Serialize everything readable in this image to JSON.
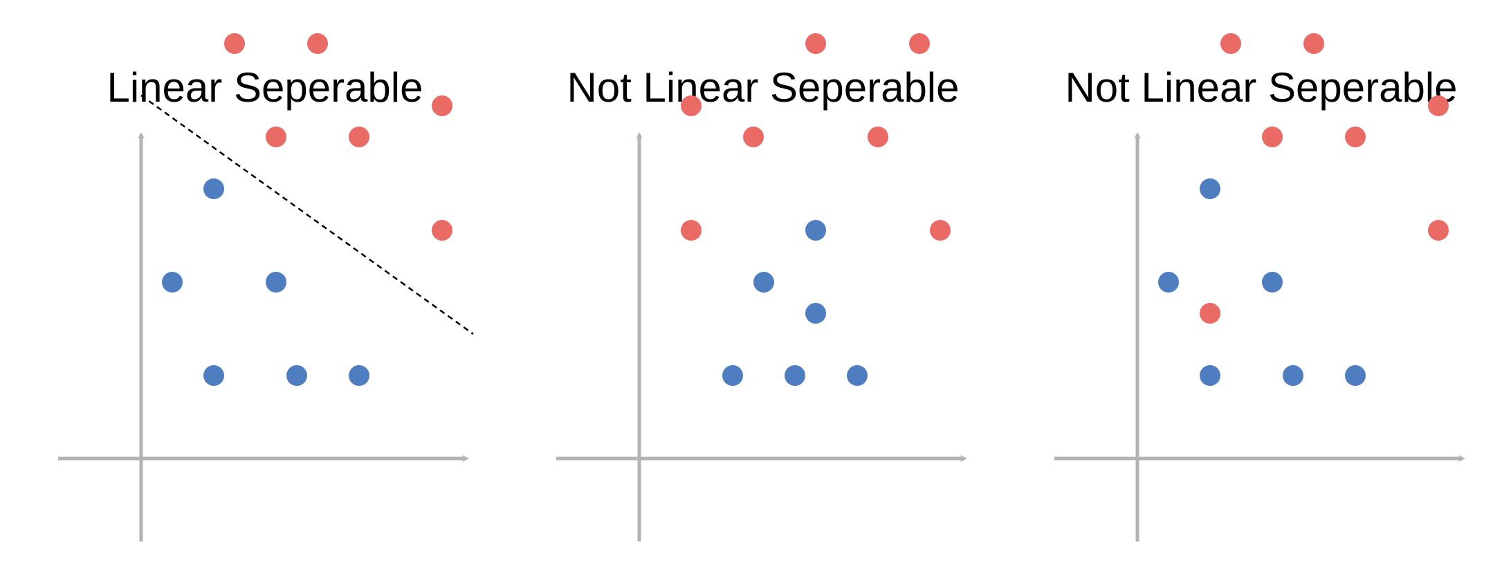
{
  "colors": {
    "axis": "#b3b3b3",
    "red_class": "#ea6b66",
    "blue_class": "#4e7dc0",
    "boundary": "#000000",
    "background": "#ffffff"
  },
  "panels": [
    {
      "title": "Linear Seperable",
      "has_boundary": true,
      "boundary": [
        [
          0.0,
          3.5
        ],
        [
          3.2,
          1.2
        ]
      ],
      "points": [
        {
          "x": 0.9,
          "y": 4.0,
          "class": "red"
        },
        {
          "x": 1.7,
          "y": 4.0,
          "class": "red"
        },
        {
          "x": 1.3,
          "y": 3.1,
          "class": "red"
        },
        {
          "x": 2.1,
          "y": 3.1,
          "class": "red"
        },
        {
          "x": 2.9,
          "y": 3.4,
          "class": "red"
        },
        {
          "x": 2.9,
          "y": 2.2,
          "class": "red"
        },
        {
          "x": 0.7,
          "y": 2.6,
          "class": "blue"
        },
        {
          "x": 0.3,
          "y": 1.7,
          "class": "blue"
        },
        {
          "x": 1.3,
          "y": 1.7,
          "class": "blue"
        },
        {
          "x": 0.7,
          "y": 0.8,
          "class": "blue"
        },
        {
          "x": 1.5,
          "y": 0.8,
          "class": "blue"
        },
        {
          "x": 2.1,
          "y": 0.8,
          "class": "blue"
        }
      ]
    },
    {
      "title": "Not Linear Seperable",
      "has_boundary": false,
      "points": [
        {
          "x": 1.7,
          "y": 4.0,
          "class": "red"
        },
        {
          "x": 2.7,
          "y": 4.0,
          "class": "red"
        },
        {
          "x": 0.5,
          "y": 3.4,
          "class": "red"
        },
        {
          "x": 1.1,
          "y": 3.1,
          "class": "red"
        },
        {
          "x": 2.3,
          "y": 3.1,
          "class": "red"
        },
        {
          "x": 0.5,
          "y": 2.2,
          "class": "red"
        },
        {
          "x": 2.9,
          "y": 2.2,
          "class": "red"
        },
        {
          "x": 1.7,
          "y": 2.2,
          "class": "blue"
        },
        {
          "x": 1.2,
          "y": 1.7,
          "class": "blue"
        },
        {
          "x": 1.7,
          "y": 1.4,
          "class": "blue"
        },
        {
          "x": 0.9,
          "y": 0.8,
          "class": "blue"
        },
        {
          "x": 1.5,
          "y": 0.8,
          "class": "blue"
        },
        {
          "x": 2.1,
          "y": 0.8,
          "class": "blue"
        }
      ]
    },
    {
      "title": "Not Linear Seperable",
      "has_boundary": false,
      "points": [
        {
          "x": 0.9,
          "y": 4.0,
          "class": "red"
        },
        {
          "x": 1.7,
          "y": 4.0,
          "class": "red"
        },
        {
          "x": 1.3,
          "y": 3.1,
          "class": "red"
        },
        {
          "x": 2.1,
          "y": 3.1,
          "class": "red"
        },
        {
          "x": 2.9,
          "y": 3.4,
          "class": "red"
        },
        {
          "x": 2.9,
          "y": 2.2,
          "class": "red"
        },
        {
          "x": 0.7,
          "y": 1.4,
          "class": "red"
        },
        {
          "x": 0.7,
          "y": 2.6,
          "class": "blue"
        },
        {
          "x": 0.3,
          "y": 1.7,
          "class": "blue"
        },
        {
          "x": 1.3,
          "y": 1.7,
          "class": "blue"
        },
        {
          "x": 0.7,
          "y": 0.8,
          "class": "blue"
        },
        {
          "x": 1.5,
          "y": 0.8,
          "class": "blue"
        },
        {
          "x": 2.1,
          "y": 0.8,
          "class": "blue"
        }
      ]
    }
  ]
}
